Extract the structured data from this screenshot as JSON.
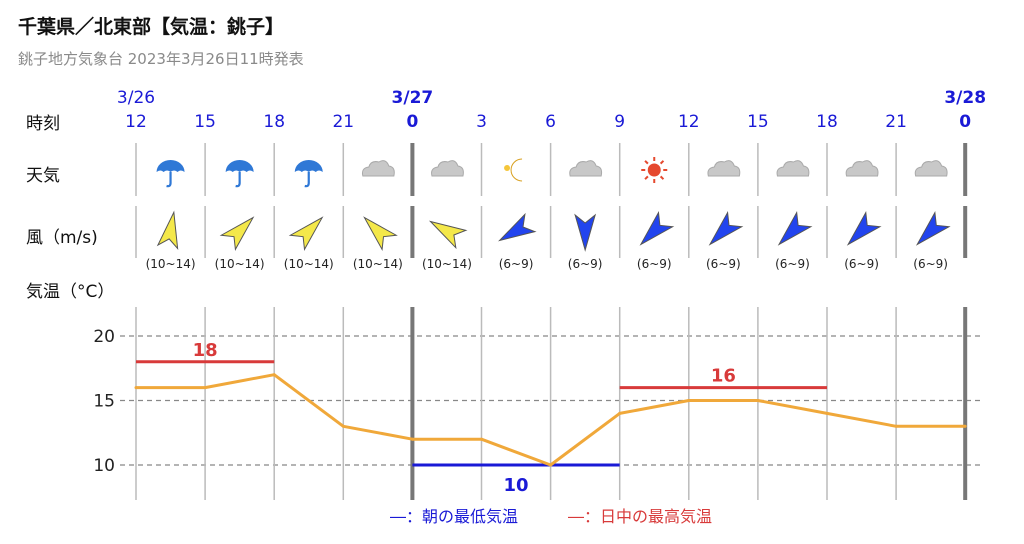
{
  "header": {
    "title": "千葉県／北東部【気温：銚子】",
    "subtitle": "銚子地方気象台 2023年3月26日11時発表"
  },
  "rows": {
    "time_label": "時刻",
    "weather_label": "天気",
    "wind_label": "風（m/s)",
    "temp_label": "気温（°C）"
  },
  "dates": [
    {
      "label": "3/26",
      "col": 0,
      "bold": false
    },
    {
      "label": "3/27",
      "col": 4,
      "bold": true
    },
    {
      "label": "3/28",
      "col": 12,
      "bold": true
    }
  ],
  "hours": [
    "12",
    "15",
    "18",
    "21",
    "0",
    "3",
    "6",
    "9",
    "12",
    "15",
    "18",
    "21",
    "0"
  ],
  "weather": [
    "umbrella",
    "umbrella",
    "umbrella",
    "cloud",
    "cloud",
    "moon",
    "cloud",
    "sun",
    "cloud",
    "cloud",
    "cloud",
    "cloud"
  ],
  "wind": [
    {
      "dir": 10,
      "color": "#f4e84a",
      "speed": "(10~14)"
    },
    {
      "dir": 45,
      "color": "#f4e84a",
      "speed": "(10~14)"
    },
    {
      "dir": 45,
      "color": "#f4e84a",
      "speed": "(10~14)"
    },
    {
      "dir": -45,
      "color": "#f4e84a",
      "speed": "(10~14)"
    },
    {
      "dir": -60,
      "color": "#f4e84a",
      "speed": "(10~14)"
    },
    {
      "dir": -120,
      "color": "#2244ee",
      "speed": "(6~9)"
    },
    {
      "dir": 180,
      "color": "#2244ee",
      "speed": "(6~9)"
    },
    {
      "dir": -135,
      "color": "#2244ee",
      "speed": "(6~9)"
    },
    {
      "dir": -135,
      "color": "#2244ee",
      "speed": "(6~9)"
    },
    {
      "dir": -135,
      "color": "#2244ee",
      "speed": "(6~9)"
    },
    {
      "dir": -135,
      "color": "#2244ee",
      "speed": "(6~9)"
    },
    {
      "dir": -135,
      "color": "#2244ee",
      "speed": "(6~9)"
    }
  ],
  "legend": {
    "min_text": "―：朝の最低気温",
    "max_text": "―：日中の最高気温"
  },
  "colors": {
    "date_blue": "#1a1ad6",
    "temp_line": "#f0a83a",
    "max_red": "#d83a3a",
    "min_blue": "#1a1ad6"
  },
  "chart_data": {
    "type": "line",
    "x": [
      "12",
      "15",
      "18",
      "21",
      "0",
      "3",
      "6",
      "9",
      "12",
      "15",
      "18",
      "21",
      "0"
    ],
    "y_ticks": [
      10,
      15,
      20
    ],
    "ylim": [
      7.5,
      22.5
    ],
    "series": [
      {
        "values": [
          16,
          16,
          17,
          13,
          12,
          12,
          10,
          14,
          15,
          15,
          14,
          13,
          13
        ]
      }
    ],
    "max_temps": [
      {
        "value": 18,
        "from": 0,
        "to": 2,
        "label": "18"
      },
      {
        "value": 16,
        "from": 7,
        "to": 10,
        "label": "16"
      }
    ],
    "min_temps": [
      {
        "value": 10,
        "from": 4,
        "to": 7,
        "label": "10"
      }
    ],
    "grid": true
  }
}
